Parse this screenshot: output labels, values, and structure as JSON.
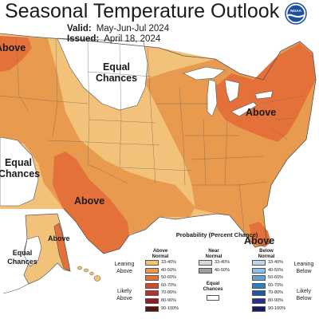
{
  "header": {
    "title": "Seasonal Temperature Outlook",
    "valid_label": "Valid:",
    "valid_value": "May-Jun-Jul 2024",
    "issued_label": "Issued:",
    "issued_value": "April 18, 2024",
    "logo_text": "NOAA"
  },
  "map_labels": {
    "above_nw": "Above",
    "equal_chances_north": "Equal Chances",
    "above_northeast": "Above",
    "equal_chances_west": "Equal Chances",
    "above_texas": "Above",
    "above_alaska": "Above",
    "equal_chances_alaska": "Equal Chances",
    "above_florida": "Above"
  },
  "legend": {
    "title": "Probability (Percent Chance)",
    "col_above": "Above Normal",
    "col_near": "Near Normal",
    "col_below": "Below Normal",
    "leaning_above": "Leaning Above",
    "likely_above": "Likely Above",
    "leaning_below": "Leaning Below",
    "likely_below": "Likely Below",
    "equal_chances": "Equal Chances",
    "ranges": [
      "33-40%",
      "40-50%",
      "50-60%",
      "60-70%",
      "70-80%",
      "80-90%",
      "90-100%"
    ],
    "near_ranges": [
      "33-40%",
      "40-50%"
    ],
    "above_colors": [
      "#f2c27a",
      "#e89a4e",
      "#e5713a",
      "#d9472b",
      "#b8312a",
      "#8e1f24",
      "#5c0f15"
    ],
    "near_colors": [
      "#d9d9d9",
      "#9e9e9e"
    ],
    "below_colors": [
      "#bcd6ef",
      "#8fbde6",
      "#5fa2d8",
      "#2f7fc4",
      "#1c5aa3",
      "#2a3288",
      "#1a1a5e"
    ],
    "equal_color": "#ffffff"
  }
}
